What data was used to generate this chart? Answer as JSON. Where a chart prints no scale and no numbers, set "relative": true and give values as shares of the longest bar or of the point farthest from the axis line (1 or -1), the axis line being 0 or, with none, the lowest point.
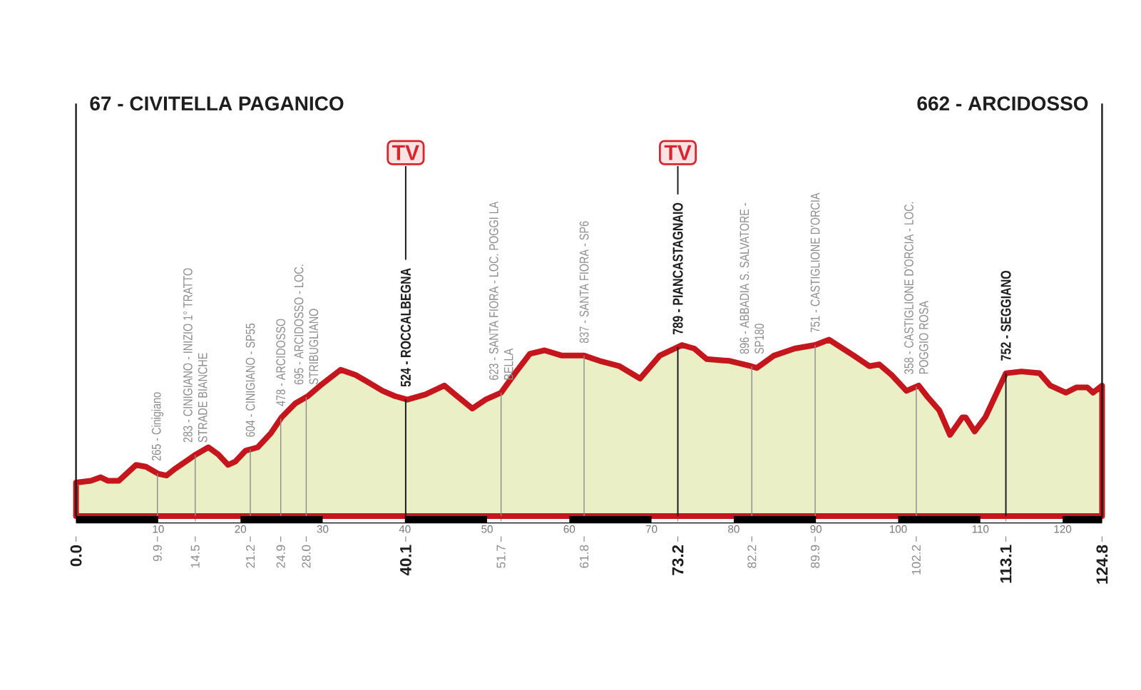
{
  "chart_data": {
    "type": "area",
    "relative": true,
    "color": "#c4161c",
    "x": [
      0,
      1.8,
      3.0,
      3.9,
      5.2,
      7.3,
      8.5,
      10.0,
      11.0,
      12.1,
      14.6,
      16.1,
      17.3,
      18.5,
      19.4,
      20.6,
      22.1,
      23.7,
      25.0,
      26.7,
      28.2,
      29.7,
      32.2,
      34.0,
      35.5,
      37.3,
      38.8,
      40.3,
      42.5,
      44.8,
      46.1,
      48.2,
      49.8,
      51.7,
      53.4,
      55.2,
      57.0,
      59.1,
      61.8,
      63.7,
      66.1,
      68.6,
      71.0,
      73.7,
      75.2,
      76.7,
      79.5,
      82.1,
      82.8,
      84.9,
      87.4,
      89.9,
      91.6,
      94.6,
      96.5,
      97.7,
      99.2,
      101.0,
      102.5,
      103.5,
      105.0,
      106.3,
      107.8,
      108.2,
      109.3,
      110.6,
      111.7,
      113.1,
      115.0,
      117.2,
      118.5,
      120.4,
      121.7,
      123.0,
      123.7,
      124.8
    ],
    "values": [
      0.19,
      0.2,
      0.22,
      0.2,
      0.2,
      0.29,
      0.28,
      0.24,
      0.23,
      0.27,
      0.35,
      0.39,
      0.35,
      0.29,
      0.31,
      0.37,
      0.39,
      0.47,
      0.56,
      0.64,
      0.68,
      0.74,
      0.83,
      0.8,
      0.76,
      0.71,
      0.68,
      0.66,
      0.69,
      0.74,
      0.69,
      0.61,
      0.66,
      0.7,
      0.81,
      0.92,
      0.94,
      0.91,
      0.91,
      0.88,
      0.85,
      0.78,
      0.91,
      0.97,
      0.95,
      0.89,
      0.88,
      0.85,
      0.84,
      0.91,
      0.95,
      0.97,
      1.0,
      0.91,
      0.85,
      0.86,
      0.8,
      0.71,
      0.74,
      0.68,
      0.6,
      0.46,
      0.56,
      0.56,
      0.48,
      0.56,
      0.67,
      0.81,
      0.82,
      0.81,
      0.74,
      0.7,
      0.73,
      0.73,
      0.7,
      0.74
    ],
    "xlim": [
      0,
      124.8
    ],
    "xticks": [
      {
        "value": 0,
        "label": "0.0"
      },
      9.9,
      14.5,
      21.2,
      24.9,
      {
        "value": 28,
        "label": "28.0"
      },
      40.1,
      51.7,
      61.8,
      73.2,
      82.2,
      89.9,
      102.2,
      113.1,
      124.8
    ],
    "x2lim": [
      0,
      124.8
    ],
    "x2ticks": [
      10,
      20,
      30,
      40,
      50,
      60,
      70,
      80,
      90,
      100,
      110,
      120
    ],
    "ref_lines": [
      {
        "axis": "x",
        "value": 0,
        "label": "67 - CIVITELLA PAGANICO",
        "color": "#1e1e1e"
      },
      {
        "axis": "x",
        "value": 9.9,
        "label": "265 - Cinigiano",
        "color": "#8c8c8c"
      },
      {
        "axis": "x",
        "value": 14.5,
        "label": "283 - CINIGIANO - INIZIO 1° TRATTO STRADE BIANCHE",
        "color": "#8c8c8c"
      },
      {
        "axis": "x",
        "value": 21.2,
        "label": "604 - CINIGIANO - SP55",
        "color": "#8c8c8c"
      },
      {
        "axis": "x",
        "value": 24.9,
        "label": "478 - ARCIDOSSO",
        "color": "#8c8c8c"
      },
      {
        "axis": "x",
        "value": 28,
        "label": "695 - ARCIDOSSO - LOC. STRIBUGLIANO",
        "color": "#8c8c8c"
      },
      {
        "axis": "x",
        "value": 40.1,
        "label": "524 - ROCCALBEGNA",
        "color": "#1e1e1e"
      },
      {
        "axis": "x",
        "value": 51.7,
        "label": "623 - SANTA FIORA - LOC. POGGI LA BELLA",
        "color": "#8c8c8c"
      },
      {
        "axis": "x",
        "value": 61.8,
        "label": "837 - SANTA FIORA - SP6",
        "color": "#8c8c8c"
      },
      {
        "axis": "x",
        "value": 73.2,
        "label": "789 - PIANCASTAGNAIO",
        "color": "#1e1e1e"
      },
      {
        "axis": "x",
        "value": 82.2,
        "label": "896 - ABBADIA S. SALVATORE - SP180",
        "color": "#8c8c8c"
      },
      {
        "axis": "x",
        "value": 89.9,
        "label": "751 - CASTIGLIONE D'ORCIA",
        "color": "#8c8c8c"
      },
      {
        "axis": "x",
        "value": 102.2,
        "label": "358 - CASTIGLIONE D'ORCIA - LOC. POGGIO ROSA",
        "color": "#8c8c8c"
      },
      {
        "axis": "x",
        "value": 113.1,
        "label": "752 - SEGGIANO",
        "color": "#1e1e1e"
      },
      {
        "axis": "x",
        "value": 124.8,
        "label": "662 - ARCIDOSSO",
        "color": "#1e1e1e"
      }
    ],
    "annotations": [
      {
        "text": "TV",
        "x": 40.1
      },
      {
        "text": "TV",
        "x": 73.2
      }
    ]
  }
}
